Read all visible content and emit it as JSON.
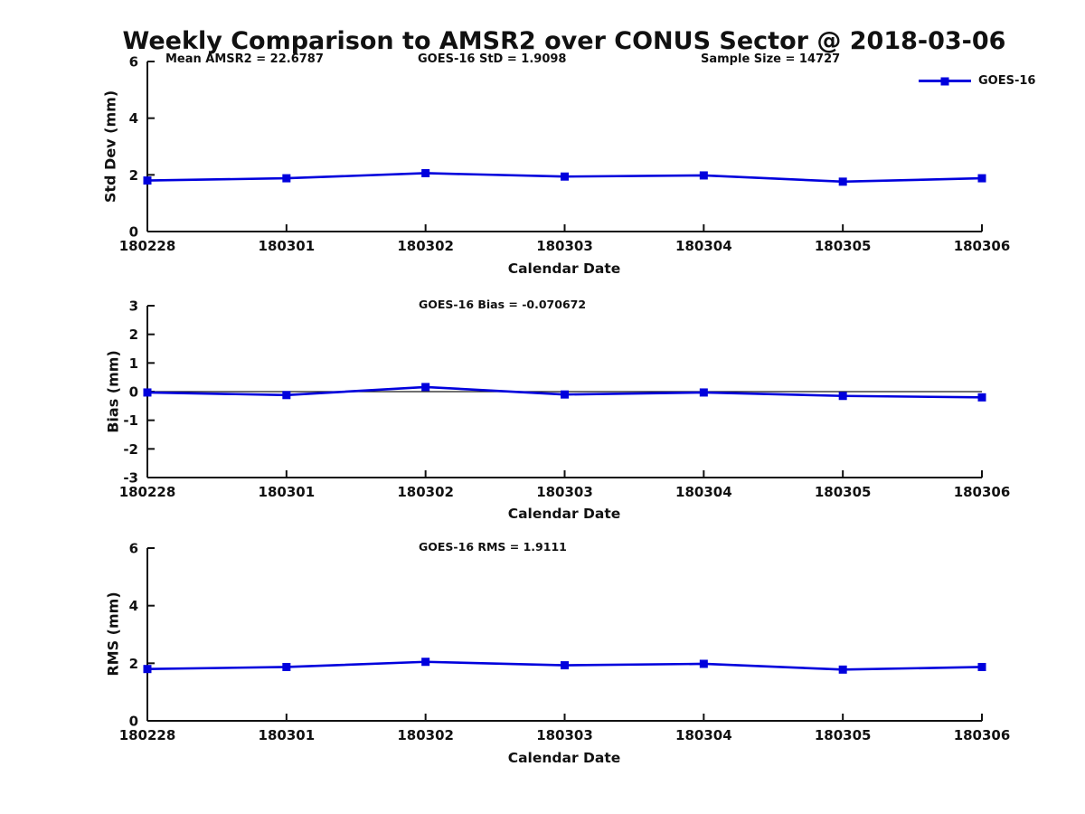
{
  "figure": {
    "title": "Weekly Comparison to AMSR2 over CONUS Sector @ 2018-03-06",
    "annotations": {
      "mean_amsr2": "Mean AMSR2 = 22.6787",
      "goes16_std": "GOES-16 StD = 1.9098",
      "sample_size": "Sample Size = 14727"
    },
    "legend": {
      "label": "GOES-16"
    }
  },
  "colors": {
    "line": "#0000dd",
    "marker": "#0000dd",
    "axis": "#111111",
    "ref_line": "#1a1a1a",
    "text": "#111111",
    "background": "#ffffff"
  },
  "chart_data": [
    {
      "type": "line",
      "title": "",
      "categories": [
        "180228",
        "180301",
        "180302",
        "180303",
        "180304",
        "180305",
        "180306"
      ],
      "series": [
        {
          "name": "GOES-16",
          "values": [
            1.8,
            1.88,
            2.06,
            1.94,
            1.98,
            1.76,
            1.88
          ]
        }
      ],
      "xlabel": "Calendar Date",
      "ylabel": "Std Dev (mm)",
      "ylim": [
        0,
        6
      ],
      "yticks": [
        0,
        2,
        4,
        6
      ],
      "grid": false,
      "legend_position": "upper-right-outside"
    },
    {
      "type": "line",
      "title": "GOES-16 Bias  = -0.070672",
      "categories": [
        "180228",
        "180301",
        "180302",
        "180303",
        "180304",
        "180305",
        "180306"
      ],
      "series": [
        {
          "name": "GOES-16",
          "values": [
            -0.03,
            -0.12,
            0.16,
            -0.1,
            -0.03,
            -0.15,
            -0.2
          ]
        }
      ],
      "xlabel": "Calendar Date",
      "ylabel": "Bias (mm)",
      "ylim": [
        -3,
        3
      ],
      "yticks": [
        -3,
        -2,
        -1,
        0,
        1,
        2,
        3
      ],
      "ref_line": 0,
      "grid": false
    },
    {
      "type": "line",
      "title": "GOES-16 RMS = 1.9111",
      "categories": [
        "180228",
        "180301",
        "180302",
        "180303",
        "180304",
        "180305",
        "180306"
      ],
      "series": [
        {
          "name": "GOES-16",
          "values": [
            1.8,
            1.87,
            2.05,
            1.93,
            1.98,
            1.78,
            1.87
          ]
        }
      ],
      "xlabel": "Calendar Date",
      "ylabel": "RMS (mm)",
      "ylim": [
        0,
        6
      ],
      "yticks": [
        0,
        2,
        4,
        6
      ],
      "grid": false
    }
  ]
}
